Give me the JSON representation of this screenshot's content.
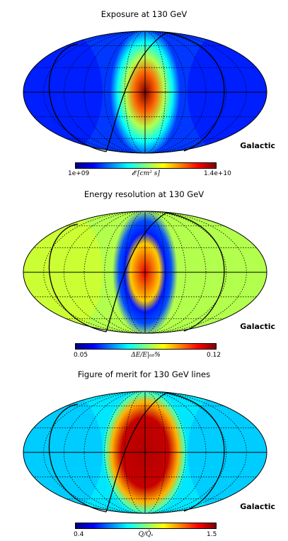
{
  "chart_data": [
    {
      "type": "heatmap",
      "title": "Exposure at 130 GeV",
      "projection": "mollweide",
      "coordinate_frame_label": "Galactic",
      "colormap": "jet",
      "colorbar": {
        "min_label": "1e+09",
        "max_label": "1.4e+10",
        "label": "𝓔 [cm² s]",
        "min": 1000000000.0,
        "max": 14000000000.0
      },
      "map": {
        "hot_spot": {
          "lon_deg": 0,
          "lat_deg": 0,
          "value_fraction": 1.0
        },
        "band_lon_deg": 0,
        "band_halfwidth_deg": 45,
        "background_value_fraction": 0.18,
        "ring": null
      }
    },
    {
      "type": "heatmap",
      "title": "Energy resolution at 130 GeV",
      "projection": "mollweide",
      "coordinate_frame_label": "Galactic",
      "colormap": "jet",
      "colorbar": {
        "min_label": "0.05",
        "max_label": "0.12",
        "label": "ΔE/E|₆₈%",
        "min": 0.05,
        "max": 0.12
      },
      "map": {
        "hot_spot": {
          "lon_deg": 0,
          "lat_deg": 0,
          "value_fraction": 0.9
        },
        "band_lon_deg": 0,
        "band_halfwidth_deg": 42,
        "background_value_fraction": 0.55,
        "ring": {
          "value_fraction": 0.15
        }
      }
    },
    {
      "type": "heatmap",
      "title": "Figure of merit for 130 GeV lines",
      "projection": "mollweide",
      "coordinate_frame_label": "Galactic",
      "colormap": "jet",
      "colorbar": {
        "min_label": "0.4",
        "max_label": "1.5",
        "label": "Q/Q̄ₛ",
        "min": 0.4,
        "max": 1.5
      },
      "map": {
        "hot_spot": {
          "lon_deg": 0,
          "lat_deg": 0,
          "value_fraction": 0.95
        },
        "band_lon_deg": 0,
        "band_halfwidth_deg": 55,
        "background_value_fraction": 0.35,
        "ring": null,
        "flat_top": true
      }
    }
  ]
}
